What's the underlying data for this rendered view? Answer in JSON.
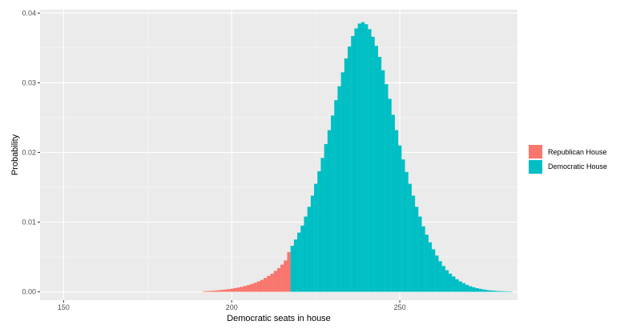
{
  "chart_data": {
    "type": "bar",
    "xlabel": "Democratic seats in house",
    "ylabel": "Probability",
    "xlim": [
      143,
      285
    ],
    "ylim": [
      -0.0012,
      0.0405
    ],
    "x_ticks": [
      150,
      200,
      250
    ],
    "x_tick_labels": [
      "150",
      "200",
      "250"
    ],
    "y_ticks": [
      0.0,
      0.01,
      0.02,
      0.03,
      0.04
    ],
    "y_tick_labels": [
      "0.00",
      "0.01",
      "0.02",
      "0.03",
      "0.04"
    ],
    "grid": true,
    "legend_position": "right",
    "threshold_seat": 218,
    "series": [
      {
        "name": "Republican House",
        "color": "#F8766D",
        "x": [
          192,
          193,
          194,
          195,
          196,
          197,
          198,
          199,
          200,
          201,
          202,
          203,
          204,
          205,
          206,
          207,
          208,
          209,
          210,
          211,
          212,
          213,
          214,
          215,
          216,
          217
        ],
        "values": [
          0.0001,
          0.00012,
          0.00015,
          0.00018,
          0.00022,
          0.00027,
          0.00032,
          0.00038,
          0.00045,
          0.00053,
          0.00062,
          0.00072,
          0.00084,
          0.00097,
          0.00112,
          0.0013,
          0.0015,
          0.00172,
          0.00198,
          0.00228,
          0.0026,
          0.003,
          0.0034,
          0.0039,
          0.0045,
          0.0057
        ]
      },
      {
        "name": "Democratic House",
        "color": "#00BFC4",
        "x": [
          218,
          219,
          220,
          221,
          222,
          223,
          224,
          225,
          226,
          227,
          228,
          229,
          230,
          231,
          232,
          233,
          234,
          235,
          236,
          237,
          238,
          239,
          240,
          241,
          242,
          243,
          244,
          245,
          246,
          247,
          248,
          249,
          250,
          251,
          252,
          253,
          254,
          255,
          256,
          257,
          258,
          259,
          260,
          261,
          262,
          263,
          264,
          265,
          266,
          267,
          268,
          269,
          270,
          271,
          272,
          273,
          274,
          275,
          276,
          277,
          278,
          279,
          280,
          281,
          282,
          283
        ],
        "values": [
          0.0066,
          0.0075,
          0.0085,
          0.0095,
          0.0108,
          0.0122,
          0.0138,
          0.0155,
          0.0173,
          0.0192,
          0.0212,
          0.0232,
          0.0253,
          0.0275,
          0.0295,
          0.0315,
          0.0335,
          0.0352,
          0.0367,
          0.0378,
          0.0385,
          0.0387,
          0.0384,
          0.0377,
          0.0366,
          0.0353,
          0.0337,
          0.0318,
          0.0298,
          0.0277,
          0.0254,
          0.0232,
          0.021,
          0.019,
          0.0172,
          0.0155,
          0.0138,
          0.0122,
          0.0108,
          0.0094,
          0.0082,
          0.0071,
          0.0061,
          0.0052,
          0.0044,
          0.0037,
          0.0031,
          0.0026,
          0.0022,
          0.0018,
          0.0015,
          0.00125,
          0.001,
          0.0008,
          0.00065,
          0.00052,
          0.00042,
          0.00033,
          0.00026,
          0.0002,
          0.00016,
          0.00012,
          0.0001,
          8e-05,
          6e-05,
          5e-05
        ]
      }
    ]
  }
}
